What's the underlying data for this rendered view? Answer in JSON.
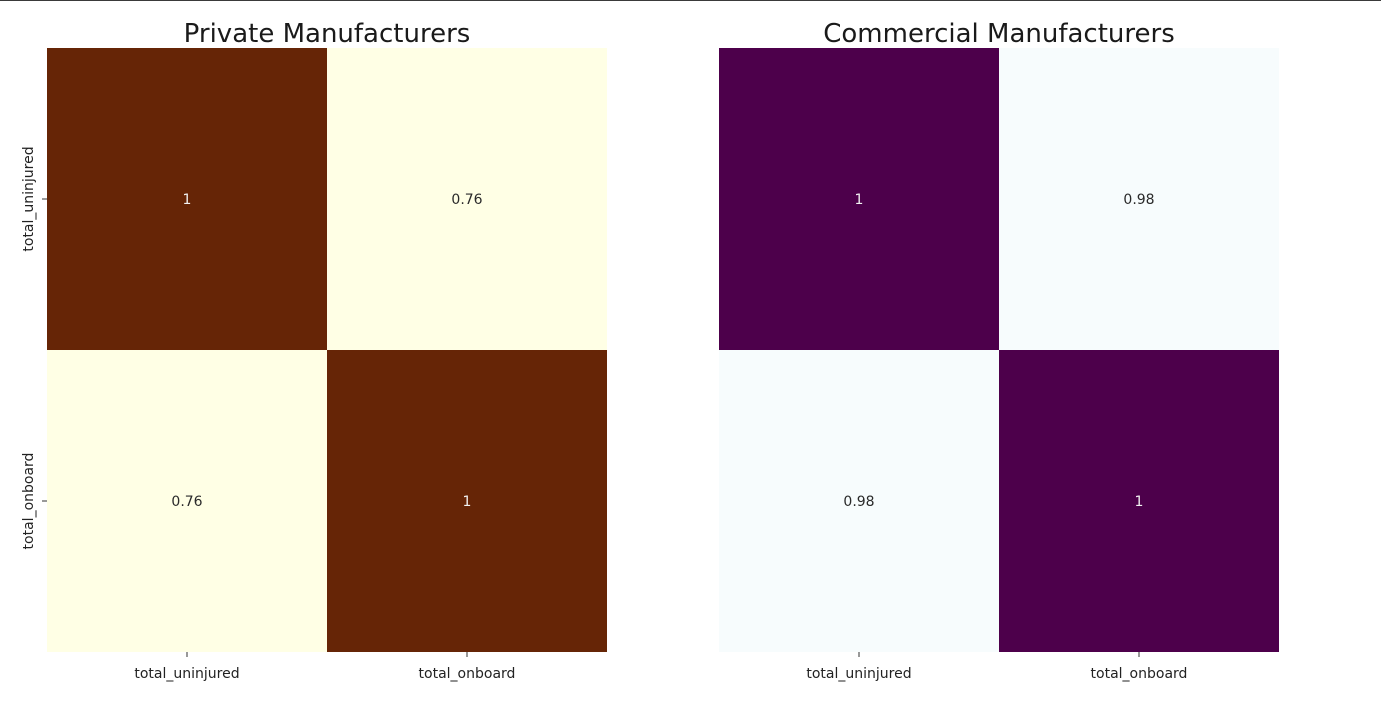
{
  "chart_data": [
    {
      "type": "heatmap",
      "title": "Private Manufacturers",
      "x_categories": [
        "total_uninjured",
        "total_onboard"
      ],
      "y_categories": [
        "total_uninjured",
        "total_onboard"
      ],
      "values": [
        [
          1,
          0.76
        ],
        [
          0.76,
          1
        ]
      ],
      "cell_labels": [
        [
          "1",
          "0.76"
        ],
        [
          "0.76",
          "1"
        ]
      ],
      "colorscale": "YlOrBr",
      "colors": {
        "high": "#662506",
        "low": "#ffffe5"
      },
      "colorbar": false,
      "grid": false
    },
    {
      "type": "heatmap",
      "title": "Commercial Manufacturers",
      "x_categories": [
        "total_uninjured",
        "total_onboard"
      ],
      "y_categories": [
        "total_uninjured",
        "total_onboard"
      ],
      "values": [
        [
          1,
          0.98
        ],
        [
          0.98,
          1
        ]
      ],
      "cell_labels": [
        [
          "1",
          "0.98"
        ],
        [
          "0.98",
          "1"
        ]
      ],
      "colorscale": "BuPu",
      "colors": {
        "high": "#4d004b",
        "low": "#f7fcfd"
      },
      "colorbar": false,
      "grid": false
    }
  ]
}
